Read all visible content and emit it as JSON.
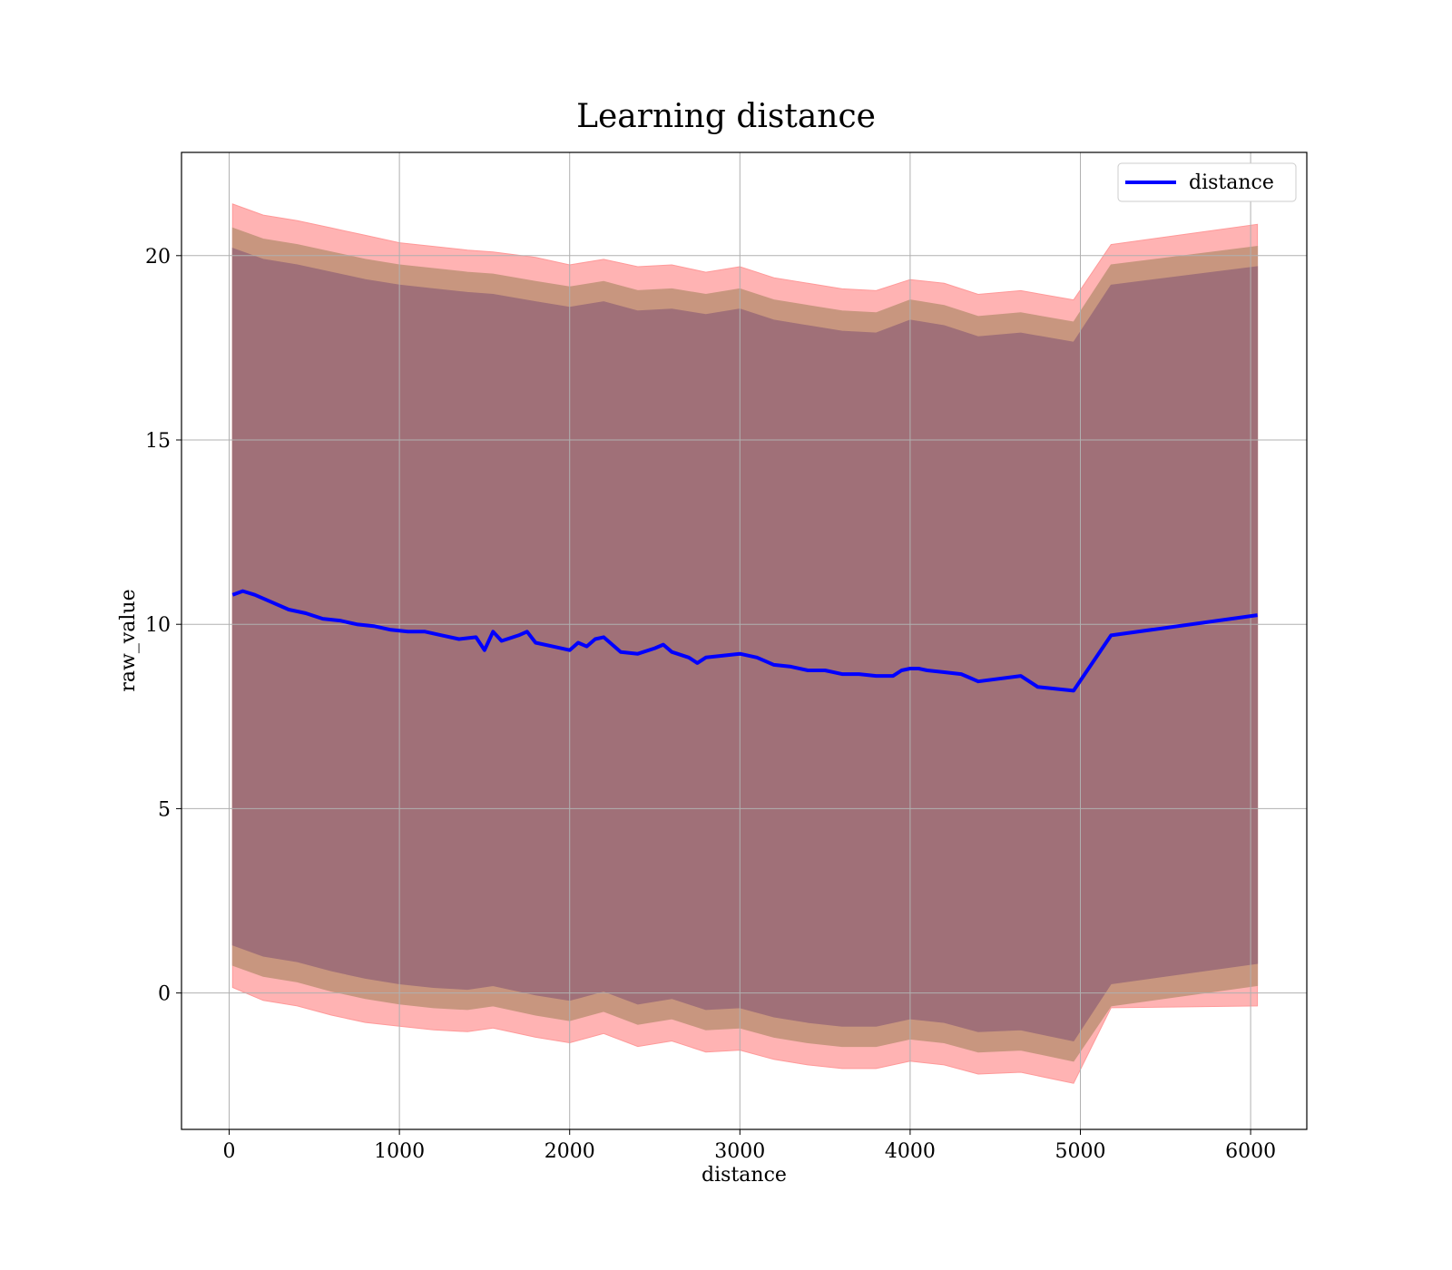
{
  "chart_data": {
    "type": "line",
    "title": "Learning distance",
    "xlabel": "distance",
    "ylabel": "raw_value",
    "xlim": [
      -280,
      6330
    ],
    "ylim": [
      -3.7,
      22.8
    ],
    "xticks": [
      0,
      1000,
      2000,
      3000,
      4000,
      5000,
      6000
    ],
    "yticks": [
      0,
      5,
      10,
      15,
      20
    ],
    "xtick_labels": [
      "0",
      "1000",
      "2000",
      "3000",
      "4000",
      "5000",
      "6000"
    ],
    "ytick_labels": [
      "0",
      "5",
      "10",
      "15",
      "20"
    ],
    "grid": true,
    "legend": {
      "position": "top-right",
      "entries": [
        "distance"
      ]
    },
    "colors": {
      "line": "#0000ff",
      "band_outer": "#ff9999",
      "band_middle": "#c8967f",
      "band_inner": "#a07078"
    },
    "series": [
      {
        "name": "distance",
        "x": [
          20,
          80,
          150,
          250,
          350,
          450,
          550,
          650,
          750,
          850,
          950,
          1050,
          1150,
          1250,
          1350,
          1450,
          1500,
          1550,
          1600,
          1700,
          1750,
          1800,
          1900,
          2000,
          2050,
          2100,
          2150,
          2200,
          2300,
          2400,
          2500,
          2550,
          2600,
          2700,
          2750,
          2800,
          2900,
          3000,
          3100,
          3200,
          3300,
          3400,
          3500,
          3600,
          3700,
          3800,
          3900,
          3950,
          4000,
          4050,
          4100,
          4200,
          4300,
          4350,
          4400,
          4650,
          4750,
          4960,
          5180,
          6040
        ],
        "y": [
          10.8,
          10.9,
          10.8,
          10.6,
          10.4,
          10.3,
          10.15,
          10.1,
          10.0,
          9.95,
          9.85,
          9.8,
          9.8,
          9.7,
          9.6,
          9.65,
          9.3,
          9.8,
          9.55,
          9.7,
          9.8,
          9.5,
          9.4,
          9.3,
          9.5,
          9.4,
          9.6,
          9.65,
          9.25,
          9.2,
          9.35,
          9.45,
          9.25,
          9.1,
          8.95,
          9.1,
          9.15,
          9.2,
          9.1,
          8.9,
          8.85,
          8.75,
          8.75,
          8.65,
          8.65,
          8.6,
          8.6,
          8.75,
          8.8,
          8.8,
          8.75,
          8.7,
          8.65,
          8.55,
          8.45,
          8.6,
          8.3,
          8.2,
          9.7,
          10.25
        ]
      }
    ],
    "bands": [
      {
        "x": [
          20,
          200,
          400,
          600,
          800,
          1000,
          1200,
          1400,
          1550,
          1800,
          2000,
          2200,
          2400,
          2600,
          2800,
          3000,
          3200,
          3400,
          3600,
          3800,
          4000,
          4200,
          4400,
          4650,
          4960,
          5180,
          6040
        ],
        "upper": [
          21.4,
          21.1,
          20.95,
          20.75,
          20.55,
          20.35,
          20.25,
          20.15,
          20.1,
          19.95,
          19.75,
          19.9,
          19.7,
          19.75,
          19.55,
          19.7,
          19.4,
          19.25,
          19.1,
          19.05,
          19.35,
          19.25,
          18.95,
          19.05,
          18.8,
          20.3,
          20.85
        ],
        "lower": [
          0.15,
          -0.2,
          -0.35,
          -0.6,
          -0.8,
          -0.9,
          -1.0,
          -1.05,
          -0.95,
          -1.2,
          -1.35,
          -1.1,
          -1.45,
          -1.3,
          -1.6,
          -1.55,
          -1.8,
          -1.95,
          -2.05,
          -2.05,
          -1.85,
          -1.95,
          -2.2,
          -2.15,
          -2.45,
          -0.4,
          -0.35
        ]
      },
      {
        "x": [
          20,
          200,
          400,
          600,
          800,
          1000,
          1200,
          1400,
          1550,
          1800,
          2000,
          2200,
          2400,
          2600,
          2800,
          3000,
          3200,
          3400,
          3600,
          3800,
          4000,
          4200,
          4400,
          4650,
          4960,
          5180,
          6040
        ],
        "upper": [
          20.75,
          20.45,
          20.3,
          20.1,
          19.9,
          19.75,
          19.65,
          19.55,
          19.5,
          19.3,
          19.15,
          19.3,
          19.05,
          19.1,
          18.95,
          19.1,
          18.8,
          18.65,
          18.5,
          18.45,
          18.8,
          18.65,
          18.35,
          18.45,
          18.2,
          19.75,
          20.25
        ],
        "lower": [
          0.75,
          0.45,
          0.3,
          0.05,
          -0.15,
          -0.3,
          -0.4,
          -0.45,
          -0.35,
          -0.6,
          -0.75,
          -0.5,
          -0.85,
          -0.7,
          -1.0,
          -0.95,
          -1.2,
          -1.35,
          -1.45,
          -1.45,
          -1.25,
          -1.35,
          -1.6,
          -1.55,
          -1.85,
          -0.35,
          0.2
        ]
      },
      {
        "x": [
          20,
          200,
          400,
          600,
          800,
          1000,
          1200,
          1400,
          1550,
          1800,
          2000,
          2200,
          2400,
          2600,
          2800,
          3000,
          3200,
          3400,
          3600,
          3800,
          4000,
          4200,
          4400,
          4650,
          4960,
          5180,
          6040
        ],
        "upper": [
          20.2,
          19.9,
          19.75,
          19.55,
          19.35,
          19.2,
          19.1,
          19.0,
          18.95,
          18.75,
          18.6,
          18.75,
          18.5,
          18.55,
          18.4,
          18.55,
          18.25,
          18.1,
          17.95,
          17.9,
          18.25,
          18.1,
          17.8,
          17.9,
          17.65,
          19.2,
          19.7
        ],
        "lower": [
          1.3,
          1.0,
          0.85,
          0.6,
          0.4,
          0.25,
          0.15,
          0.1,
          0.2,
          -0.05,
          -0.2,
          0.05,
          -0.3,
          -0.15,
          -0.45,
          -0.4,
          -0.65,
          -0.8,
          -0.9,
          -0.9,
          -0.7,
          -0.8,
          -1.05,
          -1.0,
          -1.3,
          0.25,
          0.8
        ]
      }
    ]
  }
}
